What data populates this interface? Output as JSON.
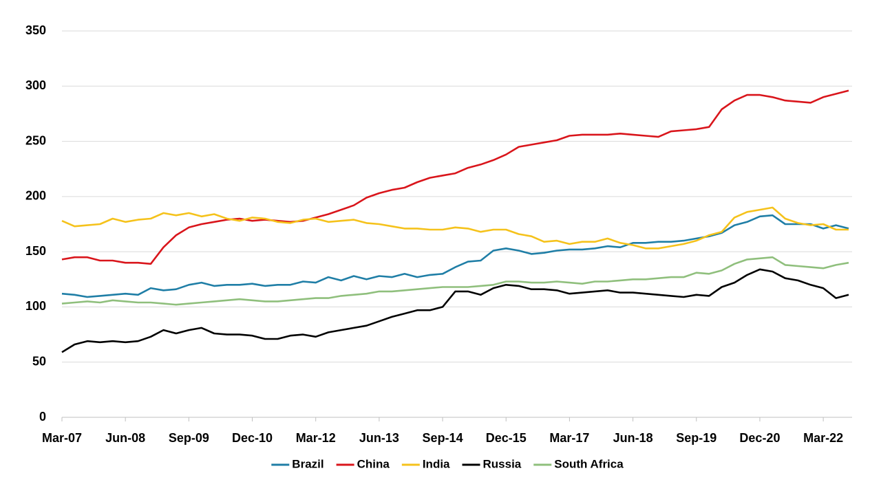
{
  "chart_data": {
    "type": "line",
    "categories": [
      "Mar-07",
      null,
      null,
      null,
      null,
      "Jun-08",
      null,
      null,
      null,
      null,
      "Sep-09",
      null,
      null,
      null,
      null,
      "Dec-10",
      null,
      null,
      null,
      null,
      "Mar-12",
      null,
      null,
      null,
      null,
      "Jun-13",
      null,
      null,
      null,
      null,
      "Sep-14",
      null,
      null,
      null,
      null,
      "Dec-15",
      null,
      null,
      null,
      null,
      "Mar-17",
      null,
      null,
      null,
      null,
      "Jun-18",
      null,
      null,
      null,
      null,
      "Sep-19",
      null,
      null,
      null,
      null,
      "Dec-20",
      null,
      null,
      null,
      null,
      "Mar-22",
      null,
      null
    ],
    "ylim": [
      0,
      350
    ],
    "yticks": [
      0,
      50,
      100,
      150,
      200,
      250,
      300,
      350
    ],
    "grid": true,
    "legend": "bottom",
    "series": [
      {
        "name": "Brazil",
        "color": "#1f7ea6",
        "values": [
          112,
          111,
          109,
          110,
          111,
          112,
          111,
          117,
          115,
          116,
          120,
          122,
          119,
          120,
          120,
          121,
          119,
          120,
          120,
          123,
          122,
          127,
          124,
          128,
          125,
          128,
          127,
          130,
          127,
          129,
          130,
          136,
          141,
          142,
          151,
          153,
          151,
          148,
          149,
          151,
          152,
          152,
          153,
          155,
          154,
          158,
          158,
          159,
          159,
          160,
          162,
          164,
          167,
          174,
          177,
          182,
          183,
          175,
          175,
          175,
          171,
          174,
          171
        ]
      },
      {
        "name": "China",
        "color": "#d9151b",
        "values": [
          143,
          145,
          145,
          142,
          142,
          140,
          140,
          139,
          154,
          165,
          172,
          175,
          177,
          179,
          180,
          178,
          179,
          178,
          177,
          178,
          181,
          184,
          188,
          192,
          199,
          203,
          206,
          208,
          213,
          217,
          219,
          221,
          226,
          229,
          233,
          238,
          245,
          247,
          249,
          251,
          255,
          256,
          256,
          256,
          257,
          256,
          255,
          254,
          259,
          260,
          261,
          263,
          279,
          287,
          292,
          292,
          290,
          287,
          286,
          285,
          290,
          293,
          296
        ]
      },
      {
        "name": "India",
        "color": "#f5c21b",
        "values": [
          178,
          173,
          174,
          175,
          180,
          177,
          179,
          180,
          185,
          183,
          185,
          182,
          184,
          180,
          178,
          181,
          180,
          177,
          176,
          179,
          180,
          177,
          178,
          179,
          176,
          175,
          173,
          171,
          171,
          170,
          170,
          172,
          171,
          168,
          170,
          170,
          166,
          164,
          159,
          160,
          157,
          159,
          159,
          162,
          158,
          156,
          153,
          153,
          155,
          157,
          160,
          165,
          168,
          181,
          186,
          188,
          190,
          180,
          176,
          174,
          175,
          170,
          170
        ]
      },
      {
        "name": "Russia",
        "color": "#000000",
        "values": [
          59,
          66,
          69,
          68,
          69,
          68,
          69,
          73,
          79,
          76,
          79,
          81,
          76,
          75,
          75,
          74,
          71,
          71,
          74,
          75,
          73,
          77,
          79,
          81,
          83,
          87,
          91,
          94,
          97,
          97,
          100,
          114,
          114,
          111,
          117,
          120,
          119,
          116,
          116,
          115,
          112,
          113,
          114,
          115,
          113,
          113,
          112,
          111,
          110,
          109,
          111,
          110,
          118,
          122,
          129,
          134,
          132,
          126,
          124,
          120,
          117,
          108,
          111
        ]
      },
      {
        "name": "South Africa",
        "color": "#8fbf7c",
        "values": [
          103,
          104,
          105,
          104,
          106,
          105,
          104,
          104,
          103,
          102,
          103,
          104,
          105,
          106,
          107,
          106,
          105,
          105,
          106,
          107,
          108,
          108,
          110,
          111,
          112,
          114,
          114,
          115,
          116,
          117,
          118,
          118,
          118,
          119,
          120,
          123,
          123,
          122,
          122,
          123,
          122,
          121,
          123,
          123,
          124,
          125,
          125,
          126,
          127,
          127,
          131,
          130,
          133,
          139,
          143,
          144,
          145,
          138,
          137,
          136,
          135,
          138,
          140
        ]
      }
    ]
  }
}
